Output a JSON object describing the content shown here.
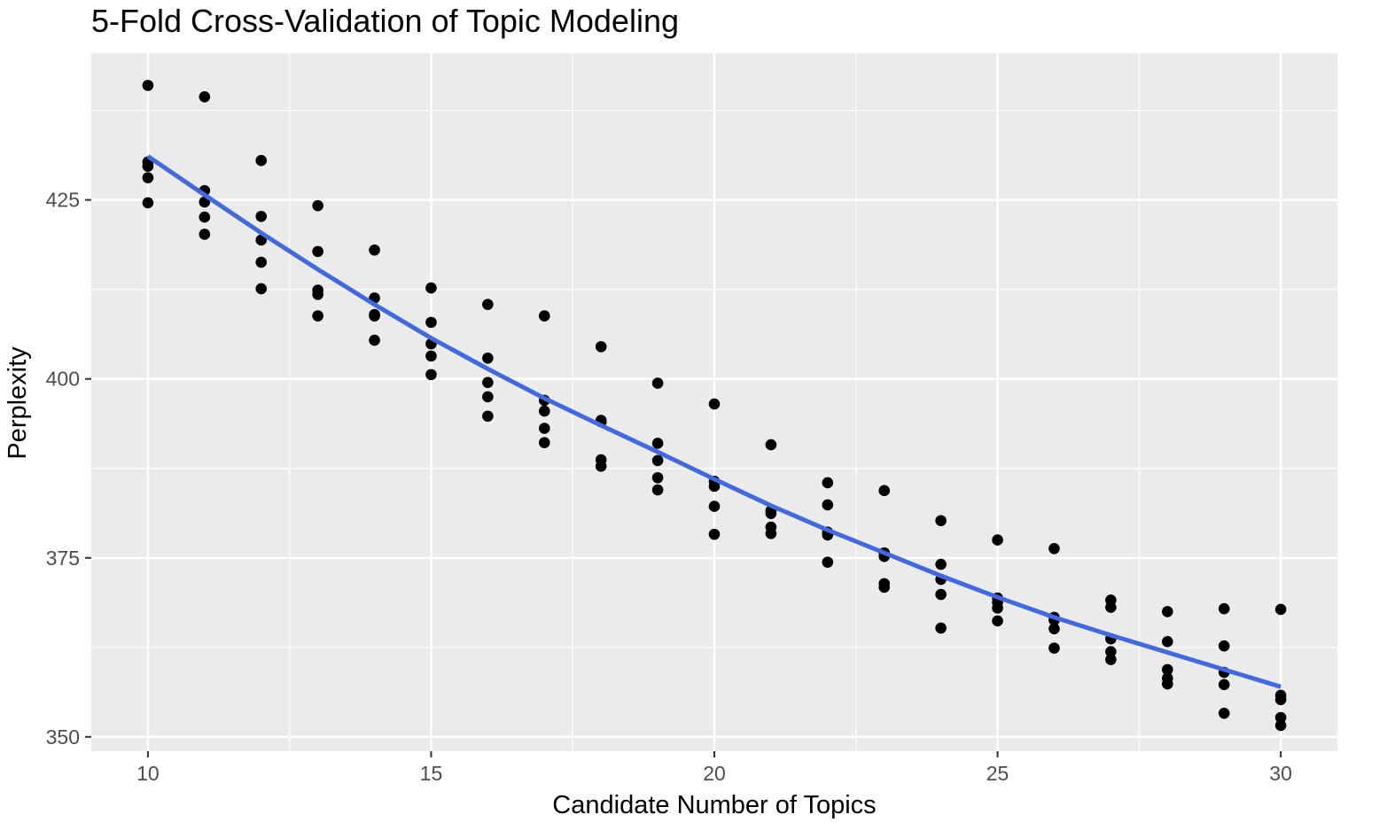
{
  "chart_data": {
    "type": "scatter",
    "title": "5-Fold Cross-Validation of Topic Modeling",
    "xlabel": "Candidate Number of Topics",
    "ylabel": "Perplexity",
    "xlim": [
      9,
      31
    ],
    "ylim": [
      348,
      445.5
    ],
    "x_ticks": [
      10,
      15,
      20,
      25,
      30
    ],
    "x_tick_labels": [
      "10",
      "15",
      "20",
      "25",
      "30"
    ],
    "x_minor": [
      12.5,
      17.5,
      22.5,
      27.5
    ],
    "y_ticks": [
      350,
      375,
      400,
      425
    ],
    "y_tick_labels": [
      "350",
      "375",
      "400",
      "425"
    ],
    "y_minor": [
      362.5,
      387.5,
      412.5,
      437.5
    ],
    "grid": true,
    "legend": "none",
    "colors": {
      "panel": "#ebebeb",
      "grid": "#ffffff",
      "points": "#000000",
      "smooth": "#4169e1",
      "tick": "#333333"
    },
    "points": [
      {
        "x": 10,
        "y": 441.0
      },
      {
        "x": 10,
        "y": 430.3
      },
      {
        "x": 10,
        "y": 429.7
      },
      {
        "x": 10,
        "y": 428.1
      },
      {
        "x": 10,
        "y": 424.6
      },
      {
        "x": 11,
        "y": 439.4
      },
      {
        "x": 11,
        "y": 426.3
      },
      {
        "x": 11,
        "y": 424.7
      },
      {
        "x": 11,
        "y": 422.6
      },
      {
        "x": 11,
        "y": 420.2
      },
      {
        "x": 12,
        "y": 430.5
      },
      {
        "x": 12,
        "y": 422.7
      },
      {
        "x": 12,
        "y": 419.4
      },
      {
        "x": 12,
        "y": 416.3
      },
      {
        "x": 12,
        "y": 412.6
      },
      {
        "x": 13,
        "y": 424.2
      },
      {
        "x": 13,
        "y": 417.8
      },
      {
        "x": 13,
        "y": 412.4
      },
      {
        "x": 13,
        "y": 411.8
      },
      {
        "x": 13,
        "y": 408.8
      },
      {
        "x": 14,
        "y": 418.0
      },
      {
        "x": 14,
        "y": 411.3
      },
      {
        "x": 14,
        "y": 409.0
      },
      {
        "x": 14,
        "y": 408.8
      },
      {
        "x": 14,
        "y": 405.4
      },
      {
        "x": 15,
        "y": 412.7
      },
      {
        "x": 15,
        "y": 407.9
      },
      {
        "x": 15,
        "y": 404.9
      },
      {
        "x": 15,
        "y": 403.2
      },
      {
        "x": 15,
        "y": 400.6
      },
      {
        "x": 16,
        "y": 410.4
      },
      {
        "x": 16,
        "y": 402.9
      },
      {
        "x": 16,
        "y": 399.5
      },
      {
        "x": 16,
        "y": 397.5
      },
      {
        "x": 16,
        "y": 394.8
      },
      {
        "x": 17,
        "y": 408.8
      },
      {
        "x": 17,
        "y": 397.0
      },
      {
        "x": 17,
        "y": 395.5
      },
      {
        "x": 17,
        "y": 393.1
      },
      {
        "x": 17,
        "y": 391.1
      },
      {
        "x": 18,
        "y": 404.5
      },
      {
        "x": 18,
        "y": 394.2
      },
      {
        "x": 18,
        "y": 394.0
      },
      {
        "x": 18,
        "y": 388.7
      },
      {
        "x": 18,
        "y": 387.8
      },
      {
        "x": 19,
        "y": 399.4
      },
      {
        "x": 19,
        "y": 391.0
      },
      {
        "x": 19,
        "y": 388.6
      },
      {
        "x": 19,
        "y": 386.2
      },
      {
        "x": 19,
        "y": 384.5
      },
      {
        "x": 20,
        "y": 396.5
      },
      {
        "x": 20,
        "y": 385.7
      },
      {
        "x": 20,
        "y": 385.0
      },
      {
        "x": 20,
        "y": 382.2
      },
      {
        "x": 20,
        "y": 378.3
      },
      {
        "x": 21,
        "y": 390.8
      },
      {
        "x": 21,
        "y": 381.6
      },
      {
        "x": 21,
        "y": 381.2
      },
      {
        "x": 21,
        "y": 379.3
      },
      {
        "x": 21,
        "y": 378.4
      },
      {
        "x": 22,
        "y": 385.5
      },
      {
        "x": 22,
        "y": 382.4
      },
      {
        "x": 22,
        "y": 378.6
      },
      {
        "x": 22,
        "y": 378.2
      },
      {
        "x": 22,
        "y": 374.4
      },
      {
        "x": 23,
        "y": 384.4
      },
      {
        "x": 23,
        "y": 375.7
      },
      {
        "x": 23,
        "y": 375.2
      },
      {
        "x": 23,
        "y": 371.4
      },
      {
        "x": 23,
        "y": 370.9
      },
      {
        "x": 24,
        "y": 380.2
      },
      {
        "x": 24,
        "y": 374.1
      },
      {
        "x": 24,
        "y": 372.0
      },
      {
        "x": 24,
        "y": 369.9
      },
      {
        "x": 24,
        "y": 365.2
      },
      {
        "x": 25,
        "y": 377.5
      },
      {
        "x": 25,
        "y": 369.4
      },
      {
        "x": 25,
        "y": 368.8
      },
      {
        "x": 25,
        "y": 368.0
      },
      {
        "x": 25,
        "y": 366.2
      },
      {
        "x": 26,
        "y": 376.3
      },
      {
        "x": 26,
        "y": 366.7
      },
      {
        "x": 26,
        "y": 366.3
      },
      {
        "x": 26,
        "y": 365.1
      },
      {
        "x": 26,
        "y": 362.4
      },
      {
        "x": 27,
        "y": 369.1
      },
      {
        "x": 27,
        "y": 368.1
      },
      {
        "x": 27,
        "y": 363.7
      },
      {
        "x": 27,
        "y": 361.9
      },
      {
        "x": 27,
        "y": 360.8
      },
      {
        "x": 28,
        "y": 367.5
      },
      {
        "x": 28,
        "y": 363.3
      },
      {
        "x": 28,
        "y": 359.4
      },
      {
        "x": 28,
        "y": 358.2
      },
      {
        "x": 28,
        "y": 357.4
      },
      {
        "x": 29,
        "y": 367.9
      },
      {
        "x": 29,
        "y": 362.7
      },
      {
        "x": 29,
        "y": 359.0
      },
      {
        "x": 29,
        "y": 357.3
      },
      {
        "x": 29,
        "y": 353.3
      },
      {
        "x": 30,
        "y": 367.8
      },
      {
        "x": 30,
        "y": 355.8
      },
      {
        "x": 30,
        "y": 355.2
      },
      {
        "x": 30,
        "y": 352.7
      },
      {
        "x": 30,
        "y": 351.6
      }
    ],
    "smooth_line": {
      "x": [
        10,
        11,
        12,
        13,
        14,
        15,
        16,
        17,
        18,
        19,
        20,
        21,
        22,
        23,
        24,
        25,
        26,
        27,
        28,
        29,
        30
      ],
      "y": [
        431.1,
        425.7,
        420.4,
        415.3,
        410.4,
        405.7,
        401.4,
        397.3,
        393.5,
        389.8,
        386.0,
        382.3,
        378.9,
        375.7,
        372.5,
        369.5,
        366.7,
        364.2,
        361.8,
        359.4,
        357.0
      ]
    }
  }
}
